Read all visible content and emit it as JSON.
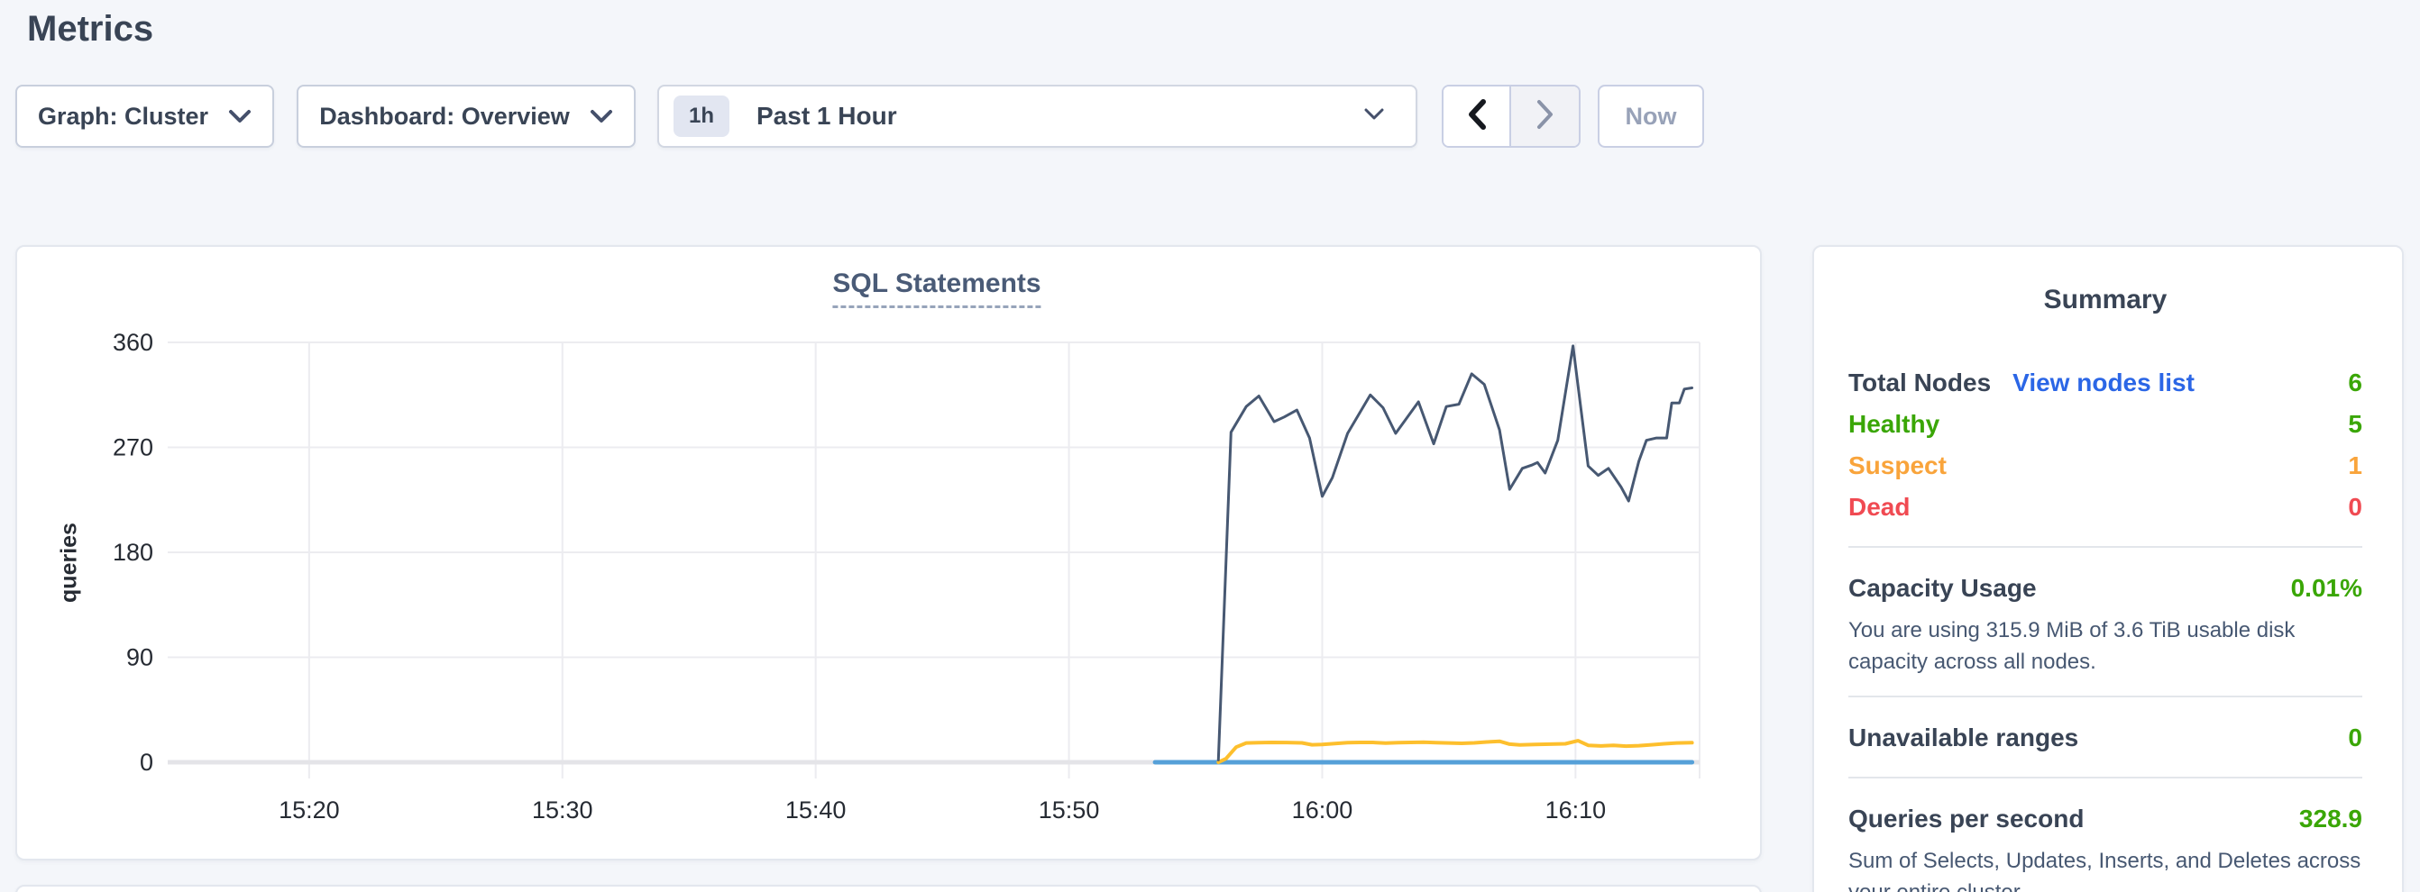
{
  "page": {
    "title": "Metrics",
    "background": "#f4f6fa"
  },
  "toolbar": {
    "graph_dropdown_label": "Graph: Cluster",
    "dashboard_dropdown_label": "Dashboard: Overview",
    "time_range_badge": "1h",
    "time_range_label": "Past 1 Hour",
    "now_button_label": "Now"
  },
  "icons": {
    "dropdown_chevrons": "chevron-down-icon",
    "prev": "chevron-left-icon",
    "next": "chevron-right-icon"
  },
  "chart_card": {
    "title": "SQL Statements",
    "ylabel": "queries"
  },
  "chart_data": {
    "type": "line",
    "title": "SQL Statements",
    "ylabel": "queries",
    "x_unit": "minutes-after-15:00",
    "xlim": [
      14.7,
      74.9
    ],
    "ylim": [
      0,
      360
    ],
    "grid": true,
    "legend": "none",
    "y_ticks": [
      0,
      90,
      180,
      270,
      360
    ],
    "x_ticks": [
      {
        "x": 20,
        "label": "15:20"
      },
      {
        "x": 30,
        "label": "15:30"
      },
      {
        "x": 40,
        "label": "15:40"
      },
      {
        "x": 50,
        "label": "15:50"
      },
      {
        "x": 60,
        "label": "16:00"
      },
      {
        "x": 70,
        "label": "16:10"
      }
    ],
    "series": [
      {
        "name": "blue-flat-series",
        "color": "#56a0d8",
        "width": 5,
        "points": [
          [
            53.4,
            0
          ],
          [
            74.6,
            0
          ]
        ]
      },
      {
        "name": "yellow-series",
        "color": "#fdbf2d",
        "width": 4,
        "points": [
          [
            55.9,
            0
          ],
          [
            56.2,
            3
          ],
          [
            56.6,
            13
          ],
          [
            57.0,
            16.5
          ],
          [
            57.5,
            16.8
          ],
          [
            58.0,
            17
          ],
          [
            58.6,
            16.9
          ],
          [
            59.2,
            16.6
          ],
          [
            59.6,
            15.0
          ],
          [
            60.0,
            15.2
          ],
          [
            60.5,
            16.0
          ],
          [
            61.0,
            16.8
          ],
          [
            61.5,
            17.0
          ],
          [
            62.0,
            17.0
          ],
          [
            62.5,
            16.4
          ],
          [
            63.0,
            16.8
          ],
          [
            63.5,
            17.0
          ],
          [
            64.0,
            17.2
          ],
          [
            64.5,
            16.8
          ],
          [
            65.0,
            16.5
          ],
          [
            65.5,
            16.2
          ],
          [
            66.0,
            16.6
          ],
          [
            66.5,
            17.4
          ],
          [
            67.0,
            18.0
          ],
          [
            67.4,
            15.5
          ],
          [
            67.8,
            14.8
          ],
          [
            68.4,
            15.2
          ],
          [
            69.0,
            15.5
          ],
          [
            69.6,
            15.8
          ],
          [
            70.1,
            18.5
          ],
          [
            70.5,
            14.5
          ],
          [
            71.0,
            14.0
          ],
          [
            71.5,
            14.5
          ],
          [
            72.0,
            13.8
          ],
          [
            72.5,
            14.2
          ],
          [
            73.0,
            15.0
          ],
          [
            73.5,
            15.8
          ],
          [
            74.0,
            16.5
          ],
          [
            74.6,
            16.8
          ]
        ]
      },
      {
        "name": "navy-series",
        "color": "#475872",
        "width": 3,
        "points": [
          [
            55.9,
            2
          ],
          [
            56.4,
            283
          ],
          [
            57.0,
            305
          ],
          [
            57.5,
            314
          ],
          [
            58.1,
            292
          ],
          [
            58.5,
            296
          ],
          [
            59.0,
            302
          ],
          [
            59.5,
            278
          ],
          [
            60.0,
            228
          ],
          [
            60.4,
            244
          ],
          [
            61.0,
            282
          ],
          [
            61.9,
            315
          ],
          [
            62.4,
            304
          ],
          [
            62.9,
            282
          ],
          [
            63.8,
            309
          ],
          [
            64.4,
            273
          ],
          [
            64.9,
            305
          ],
          [
            65.4,
            307
          ],
          [
            65.9,
            333
          ],
          [
            66.4,
            324
          ],
          [
            67.0,
            285
          ],
          [
            67.4,
            234
          ],
          [
            67.9,
            252
          ],
          [
            68.3,
            255
          ],
          [
            68.5,
            257
          ],
          [
            68.8,
            248
          ],
          [
            69.3,
            276
          ],
          [
            69.9,
            357
          ],
          [
            70.5,
            254
          ],
          [
            70.9,
            246
          ],
          [
            71.3,
            252
          ],
          [
            71.8,
            236
          ],
          [
            72.1,
            224
          ],
          [
            72.5,
            258
          ],
          [
            72.8,
            276
          ],
          [
            73.2,
            278
          ],
          [
            73.6,
            278
          ],
          [
            73.8,
            308
          ],
          [
            74.1,
            308
          ],
          [
            74.3,
            320
          ],
          [
            74.6,
            321
          ]
        ]
      }
    ]
  },
  "summary": {
    "title": "Summary",
    "node_rows": [
      {
        "label": "Total Nodes",
        "link": "View nodes list",
        "value": "6"
      },
      {
        "label": "Healthy",
        "value": "5"
      },
      {
        "label": "Suspect",
        "value": "1"
      },
      {
        "label": "Dead",
        "value": "0"
      }
    ],
    "capacity": {
      "label": "Capacity Usage",
      "value": "0.01%",
      "description": "You are using 315.9 MiB of 3.6 TiB usable disk capacity across all nodes."
    },
    "unavailable": {
      "label": "Unavailable ranges",
      "value": "0"
    },
    "qps": {
      "label": "Queries per second",
      "value": "328.9",
      "description": "Sum of Selects, Updates, Inserts, and Deletes across your entire cluster."
    }
  },
  "colors": {
    "accent_green": "#3aa606",
    "warn_orange": "#f9a43b",
    "danger_red": "#f04a52",
    "link_blue": "#2b66e6",
    "heading": "#394455",
    "line_navy": "#475872",
    "line_yellow": "#fdbf2d",
    "line_blue": "#56a0d8",
    "gridline": "#ececf0"
  }
}
